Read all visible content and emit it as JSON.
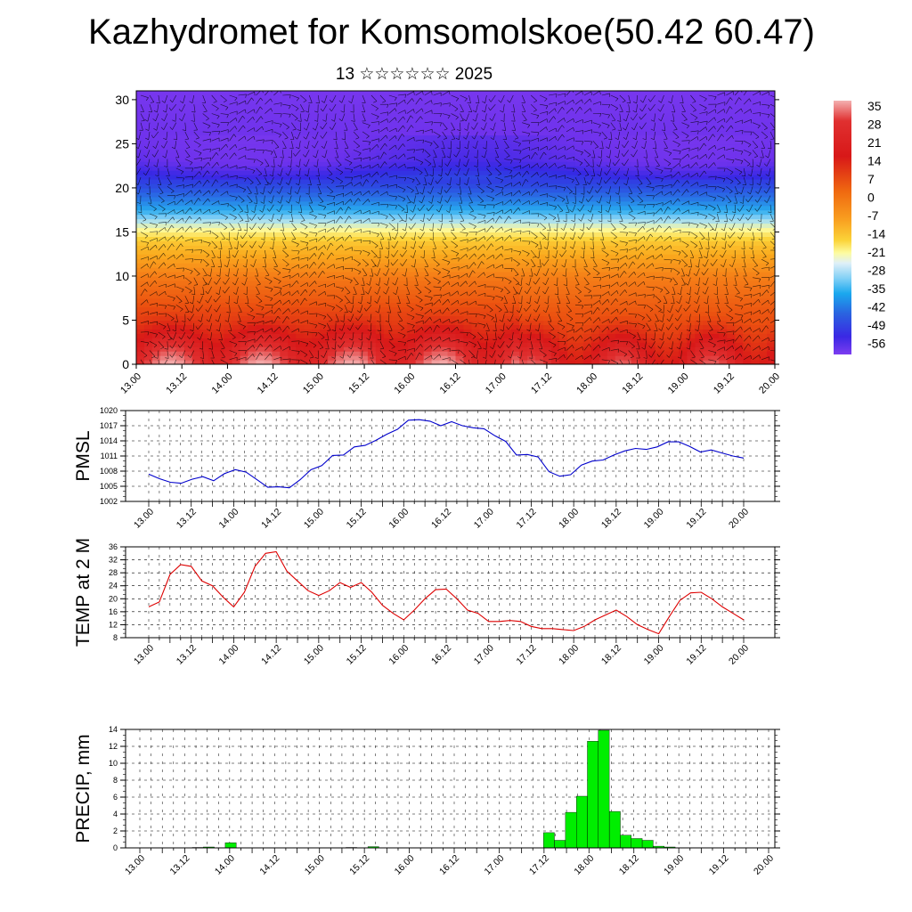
{
  "title": "Kazhydromet for Komsomolskoe(50.42 60.47)",
  "subtitle": "13 ☆☆☆☆☆☆ 2025",
  "time_ticks": [
    "13.00",
    "13.12",
    "14.00",
    "14.12",
    "15.00",
    "15.12",
    "16.00",
    "16.12",
    "17.00",
    "17.12",
    "18.00",
    "18.12",
    "19.00",
    "19.12",
    "20.00"
  ],
  "chart_data": [
    {
      "type": "heatmap",
      "title": "",
      "xlabel": "",
      "ylabel": "",
      "y_ticks": [
        0,
        5,
        10,
        15,
        20,
        25,
        30
      ],
      "ylim": [
        0,
        31
      ],
      "colorbar": {
        "labels": [
          "35",
          "28",
          "21",
          "14",
          "7",
          "0",
          "-7",
          "-14",
          "-21",
          "-28",
          "-35",
          "-42",
          "-49",
          "-56"
        ],
        "range": [
          -56,
          35
        ]
      },
      "profile_height": [
        0,
        2,
        5,
        10,
        14,
        17,
        20,
        23,
        25,
        31
      ],
      "profile_temp": [
        30,
        25,
        17,
        8,
        -5,
        -25,
        -42,
        -54,
        -56,
        -60
      ],
      "overlay": "wind barbs"
    },
    {
      "type": "line",
      "ylabel": "PMSL",
      "y_ticks": [
        "1002",
        "1005",
        "1008",
        "1011",
        "1014",
        "1017",
        "1020"
      ],
      "ylim": [
        1002,
        1020
      ],
      "color": "#0000cc",
      "values": [
        1007.4,
        1006.5,
        1005.8,
        1005.6,
        1006.4,
        1006.9,
        1006.1,
        1007.5,
        1008.3,
        1007.8,
        1006.3,
        1004.8,
        1004.9,
        1004.7,
        1006.3,
        1008.3,
        1009.1,
        1011.1,
        1011.2,
        1012.8,
        1013.1,
        1014.1,
        1015.3,
        1016.3,
        1018.1,
        1018.2,
        1017.9,
        1017.0,
        1017.8,
        1017.0,
        1016.6,
        1016.4,
        1015.0,
        1013.9,
        1011.2,
        1011.3,
        1010.8,
        1007.9,
        1007.0,
        1007.3,
        1009.2,
        1010.0,
        1010.2,
        1011.2,
        1012.0,
        1012.5,
        1012.3,
        1012.8,
        1013.8,
        1013.8,
        1012.9,
        1011.8,
        1012.2,
        1011.6,
        1011.0,
        1010.6
      ]
    },
    {
      "type": "line",
      "ylabel": "TEMP at 2 M",
      "y_ticks": [
        "8",
        "12",
        "16",
        "20",
        "24",
        "28",
        "32",
        "36"
      ],
      "ylim": [
        8,
        36
      ],
      "color": "#dd0000",
      "values": [
        17.5,
        19.0,
        27.5,
        30.5,
        30.0,
        25.5,
        24.0,
        20.5,
        17.5,
        22.0,
        30.0,
        34.0,
        34.5,
        28.5,
        25.5,
        22.5,
        21.0,
        22.5,
        25.0,
        23.5,
        25.0,
        22.0,
        18.0,
        15.5,
        13.5,
        16.5,
        20.0,
        22.8,
        23.0,
        20.0,
        16.5,
        15.5,
        13.0,
        13.0,
        13.3,
        13.0,
        11.5,
        10.8,
        10.8,
        10.5,
        10.2,
        11.5,
        13.5,
        15.0,
        16.5,
        14.5,
        12.0,
        10.5,
        9.2,
        14.5,
        19.5,
        21.8,
        22.0,
        20.0,
        17.5,
        15.5,
        13.5
      ]
    },
    {
      "type": "bar",
      "ylabel": "PRECIP, mm",
      "y_ticks": [
        "0",
        "2",
        "4",
        "6",
        "8",
        "10",
        "12",
        "14"
      ],
      "ylim": [
        0,
        14
      ],
      "color": "#00ee00",
      "values": [
        0,
        0,
        0,
        0,
        0,
        0,
        0.05,
        0.1,
        0,
        0.6,
        0,
        0,
        0,
        0,
        0,
        0,
        0,
        0,
        0,
        0,
        0.05,
        0,
        0.15,
        0,
        0,
        0,
        0,
        0,
        0,
        0,
        0,
        0,
        0,
        0,
        0,
        0,
        0,
        0,
        1.8,
        0.9,
        4.2,
        6.1,
        12.6,
        13.9,
        4.3,
        1.5,
        1.1,
        0.9,
        0.2,
        0.1,
        0,
        0,
        0,
        0,
        0,
        0,
        0,
        0,
        0
      ]
    }
  ]
}
